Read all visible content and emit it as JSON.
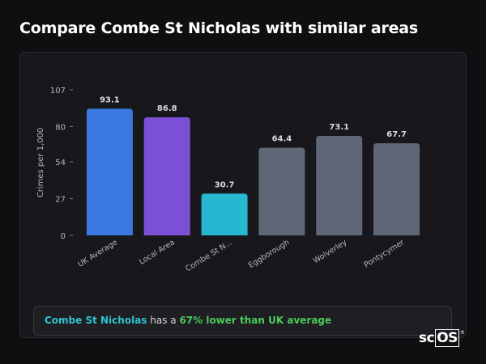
{
  "page": {
    "title": "Compare Combe St Nicholas with similar areas"
  },
  "chart_data": {
    "type": "bar",
    "ylabel": "Crimes per 1,000",
    "xlabel": "",
    "ylim": [
      0,
      107
    ],
    "yticks": [
      0,
      27,
      54,
      80,
      107
    ],
    "categories": [
      "UK Average",
      "Local Area",
      "Combe St N...",
      "Eggborough",
      "Wolverley",
      "Pontycymer"
    ],
    "values": [
      93.1,
      86.8,
      30.7,
      64.4,
      73.1,
      67.7
    ],
    "value_labels": [
      "93.1",
      "86.8",
      "30.7",
      "64.4",
      "73.1",
      "67.7"
    ],
    "colors": [
      "#3a77de",
      "#7b4fd6",
      "#25b8d0",
      "#5f6776",
      "#5f6776",
      "#5f6776"
    ],
    "grid": false,
    "legend": "none"
  },
  "summary": {
    "place": "Combe St Nicholas",
    "middle": " has a ",
    "stat": "67% lower than UK average"
  },
  "brand": {
    "prefix": "sc",
    "boxed": "OS",
    "mark": "®"
  }
}
